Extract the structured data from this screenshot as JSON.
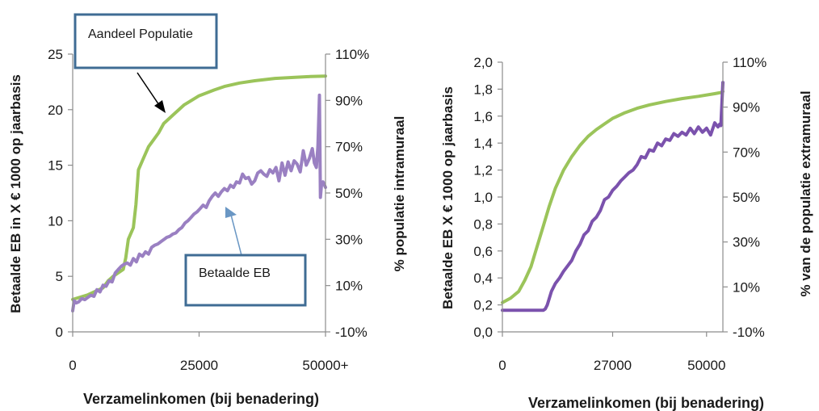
{
  "colors": {
    "population": "#9bc45a",
    "contribution": "#7b52ad",
    "contribution_muted": "#9a80c2",
    "callout_border": "#3f6c94"
  },
  "chart_data": [
    {
      "type": "line",
      "title": "",
      "xlabel": "Verzamelinkomen (bij benadering)",
      "ylabel_left": "Betaalde EB in X € 1000 op jaarbasis",
      "ylabel_right": "%  populatie intramuraal",
      "xlim": [
        0,
        50000
      ],
      "ylim_left": [
        0,
        25
      ],
      "ylim_right": [
        -10,
        110
      ],
      "x_ticks": [
        "0",
        "25000",
        "50000+"
      ],
      "x_tick_values": [
        0,
        25000,
        50000
      ],
      "y_left_ticks": [
        "0",
        "5",
        "10",
        "15",
        "20",
        "25"
      ],
      "y_left_values": [
        0,
        5,
        10,
        15,
        20,
        25
      ],
      "y_right_ticks": [
        "-10%",
        "10%",
        "30%",
        "50%",
        "70%",
        "90%",
        "110%"
      ],
      "y_right_values": [
        -10,
        10,
        30,
        50,
        70,
        90,
        110
      ],
      "annotations": [
        "Aandeel Populatie",
        "Betaalde EB"
      ],
      "series": [
        {
          "name": "Aandeel Populatie",
          "axis": "right",
          "x": [
            0,
            3000,
            6000,
            7000,
            8000,
            10000,
            10500,
            11000,
            12000,
            12500,
            13000,
            14000,
            15000,
            16000,
            17000,
            18000,
            20000,
            22000,
            25000,
            28000,
            30000,
            33000,
            36000,
            40000,
            44000,
            47000,
            50000
          ],
          "y": [
            4,
            6,
            9,
            12,
            14,
            17,
            22,
            30,
            35,
            45,
            60,
            65,
            70,
            73,
            76,
            80,
            84,
            88,
            92,
            94.5,
            96,
            97.5,
            98.5,
            99.5,
            100,
            100.3,
            100.5
          ]
        },
        {
          "name": "Betaalde EB",
          "axis": "left",
          "x": [
            0,
            300,
            700,
            1200,
            1800,
            2400,
            3000,
            3600,
            4200,
            4800,
            5400,
            6000,
            6600,
            7200,
            7800,
            8400,
            9000,
            9600,
            10200,
            10800,
            11400,
            12000,
            12600,
            13200,
            13800,
            14400,
            15000,
            15600,
            16200,
            16800,
            17400,
            18000,
            18600,
            19200,
            19800,
            20400,
            21000,
            21600,
            22200,
            22800,
            23400,
            24000,
            24600,
            25200,
            25800,
            26400,
            27000,
            27600,
            28200,
            28800,
            29400,
            30000,
            30600,
            31200,
            31800,
            32400,
            33000,
            33600,
            34200,
            34800,
            35400,
            36000,
            36600,
            37200,
            37800,
            38400,
            39000,
            39600,
            40200,
            40800,
            41400,
            42000,
            42600,
            43200,
            43800,
            44400,
            45000,
            45600,
            46200,
            46800,
            47400,
            47800,
            48200,
            48500,
            48800,
            49000,
            49200,
            49500,
            50000
          ],
          "y": [
            1.9,
            2.8,
            2.6,
            2.7,
            3.0,
            2.9,
            3.1,
            3.3,
            3.2,
            3.8,
            3.6,
            4.2,
            4.1,
            4.6,
            4.5,
            5.3,
            5.6,
            5.9,
            6.1,
            6.2,
            6.0,
            6.6,
            6.3,
            7.0,
            6.8,
            7.2,
            7.0,
            7.6,
            7.8,
            7.9,
            8.1,
            8.3,
            8.5,
            8.6,
            8.8,
            8.9,
            9.2,
            9.4,
            9.8,
            10.0,
            10.3,
            10.6,
            10.8,
            11.1,
            11.4,
            11.2,
            11.8,
            12.2,
            12.5,
            12.2,
            12.6,
            12.9,
            12.7,
            13.2,
            13.0,
            13.5,
            13.4,
            14.2,
            13.8,
            13.9,
            13.3,
            13.6,
            14.3,
            14.5,
            14.2,
            14.0,
            14.6,
            14.3,
            14.8,
            13.6,
            15.2,
            14.1,
            15.3,
            14.5,
            15.4,
            15.1,
            14.4,
            16.3,
            15.0,
            15.6,
            16.5,
            15.2,
            14.8,
            16.7,
            21.3,
            12.1,
            13.2,
            13.5,
            13.0
          ]
        }
      ]
    },
    {
      "type": "line",
      "title": "",
      "xlabel": "Verzamelinkomen (bij benadering)",
      "ylabel_left": "Betaalde EB X € 1000 op jaarbasis",
      "ylabel_right": "% van de populatie extramuraal",
      "xlim": [
        0,
        54000
      ],
      "ylim_left": [
        0,
        2.0
      ],
      "ylim_right": [
        -10,
        110
      ],
      "x_ticks": [
        "0",
        "27000",
        "50000"
      ],
      "x_tick_values": [
        0,
        27000,
        50000
      ],
      "y_left_ticks": [
        "0,0",
        "0,2",
        "0,4",
        "0,6",
        "0,8",
        "1,0",
        "1,2",
        "1,4",
        "1,6",
        "1,8",
        "2,0"
      ],
      "y_left_values": [
        0,
        0.2,
        0.4,
        0.6,
        0.8,
        1.0,
        1.2,
        1.4,
        1.6,
        1.8,
        2.0
      ],
      "y_right_ticks": [
        "-10%",
        "10%",
        "30%",
        "50%",
        "70%",
        "90%",
        "110%"
      ],
      "y_right_values": [
        -10,
        10,
        30,
        50,
        70,
        90,
        110
      ],
      "series": [
        {
          "name": "",
          "axis": "right",
          "x": [
            0,
            2000,
            4000,
            5500,
            7000,
            8500,
            10000,
            11500,
            13000,
            15000,
            17000,
            19000,
            21000,
            23000,
            25000,
            27000,
            30000,
            33000,
            36000,
            40000,
            44000,
            48000,
            52000,
            53500,
            54000
          ],
          "y": [
            3,
            5,
            8,
            13,
            19,
            28,
            37,
            46,
            54,
            62,
            68,
            73,
            77,
            80,
            82.5,
            85,
            87.5,
            89.5,
            91,
            92.5,
            93.8,
            94.8,
            96,
            96.5,
            97
          ]
        },
        {
          "name": "",
          "axis": "left",
          "x": [
            0,
            2000,
            4000,
            6000,
            8000,
            10000,
            10500,
            11000,
            12000,
            13000,
            14000,
            15000,
            16000,
            17000,
            18000,
            19000,
            20000,
            21000,
            22000,
            23000,
            24000,
            25000,
            26000,
            27000,
            28000,
            29000,
            30000,
            31000,
            32000,
            33000,
            34000,
            35000,
            36000,
            37000,
            38000,
            39000,
            40000,
            41000,
            42000,
            43000,
            44000,
            45000,
            46000,
            47000,
            48000,
            49000,
            50000,
            51000,
            52000,
            52800,
            53200,
            53500,
            54000
          ],
          "y": [
            0.16,
            0.16,
            0.16,
            0.16,
            0.16,
            0.16,
            0.17,
            0.2,
            0.3,
            0.36,
            0.4,
            0.45,
            0.49,
            0.53,
            0.6,
            0.65,
            0.72,
            0.75,
            0.82,
            0.85,
            0.9,
            0.98,
            1.0,
            1.05,
            1.08,
            1.12,
            1.15,
            1.18,
            1.2,
            1.24,
            1.3,
            1.29,
            1.35,
            1.34,
            1.4,
            1.38,
            1.43,
            1.42,
            1.47,
            1.45,
            1.48,
            1.46,
            1.51,
            1.47,
            1.52,
            1.48,
            1.51,
            1.46,
            1.55,
            1.52,
            1.54,
            1.53,
            1.85
          ]
        }
      ]
    }
  ]
}
